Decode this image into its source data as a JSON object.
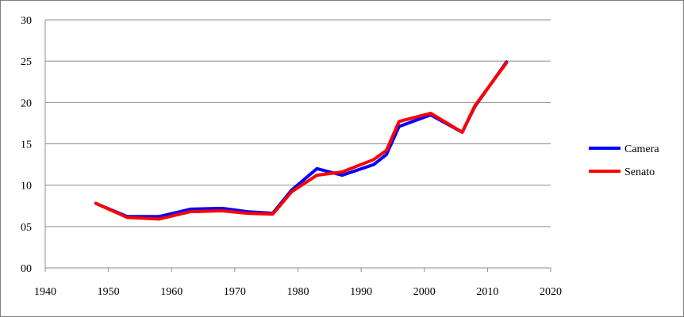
{
  "chart_data": {
    "type": "line",
    "title": "",
    "xlabel": "",
    "ylabel": "",
    "xlim": [
      1940,
      2020
    ],
    "ylim": [
      0,
      30
    ],
    "x_ticks": [
      "1940",
      "1950",
      "1960",
      "1970",
      "1980",
      "1990",
      "2000",
      "2010",
      "2020"
    ],
    "y_ticks": [
      "00",
      "05",
      "10",
      "15",
      "20",
      "25",
      "30"
    ],
    "grid": "horizontal",
    "legend_position": "right",
    "series": [
      {
        "name": "Camera",
        "color": "#0000ff",
        "x": [
          1948,
          1953,
          1958,
          1963,
          1968,
          1972,
          1976,
          1979,
          1983,
          1987,
          1992,
          1994,
          1996,
          2001,
          2006,
          2008,
          2013
        ],
        "values": [
          7.8,
          6.2,
          6.2,
          7.1,
          7.2,
          6.8,
          6.6,
          9.4,
          12.0,
          11.2,
          12.5,
          13.7,
          17.1,
          18.5,
          16.4,
          19.5,
          24.9
        ]
      },
      {
        "name": "Senato",
        "color": "#ff0000",
        "x": [
          1948,
          1953,
          1958,
          1963,
          1968,
          1972,
          1976,
          1979,
          1983,
          1987,
          1992,
          1994,
          1996,
          2001,
          2006,
          2008,
          2013
        ],
        "values": [
          7.8,
          6.1,
          5.9,
          6.8,
          6.9,
          6.6,
          6.5,
          9.2,
          11.2,
          11.6,
          13.1,
          14.2,
          17.7,
          18.7,
          16.4,
          19.6,
          24.8
        ]
      }
    ]
  }
}
